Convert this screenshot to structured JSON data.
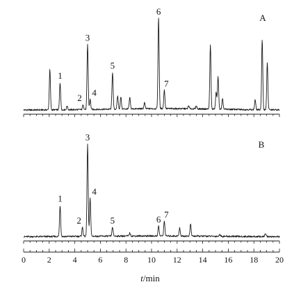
{
  "chart_data": {
    "type": "line",
    "x_axis": {
      "label_italic": "t",
      "label_rest": "/min",
      "range": [
        0,
        20
      ],
      "major_ticks": [
        0,
        2,
        4,
        6,
        8,
        10,
        12,
        14,
        16,
        18,
        20
      ],
      "minor_step": 0.5
    },
    "y_axis": {
      "shown": false,
      "unit": "relative response (A = 100)"
    },
    "grid": false,
    "legend": "none",
    "panels": [
      {
        "name": "A",
        "peaks": [
          {
            "t": 2.05,
            "h": 40
          },
          {
            "t": 2.85,
            "h": 27,
            "label": "1"
          },
          {
            "t": 3.4,
            "h": 4
          },
          {
            "t": 4.65,
            "h": 5,
            "label": "2"
          },
          {
            "t": 5.0,
            "h": 65,
            "label": "3"
          },
          {
            "t": 5.2,
            "h": 10,
            "label": "4"
          },
          {
            "t": 6.95,
            "h": 37,
            "label": "5"
          },
          {
            "t": 7.35,
            "h": 13
          },
          {
            "t": 7.6,
            "h": 12
          },
          {
            "t": 8.3,
            "h": 11
          },
          {
            "t": 9.45,
            "h": 6
          },
          {
            "t": 10.55,
            "h": 91,
            "label": "6"
          },
          {
            "t": 11.0,
            "h": 19,
            "label": "7"
          },
          {
            "t": 12.9,
            "h": 3
          },
          {
            "t": 13.5,
            "h": 3
          },
          {
            "t": 14.6,
            "h": 64
          },
          {
            "t": 15.05,
            "h": 17
          },
          {
            "t": 15.2,
            "h": 33
          },
          {
            "t": 15.55,
            "h": 10
          },
          {
            "t": 18.1,
            "h": 10
          },
          {
            "t": 18.65,
            "h": 70
          },
          {
            "t": 19.05,
            "h": 47
          }
        ]
      },
      {
        "name": "B",
        "peaks": [
          {
            "t": 2.85,
            "h": 31,
            "label": "1"
          },
          {
            "t": 4.6,
            "h": 9,
            "label": "2"
          },
          {
            "t": 5.0,
            "h": 92,
            "label": "3"
          },
          {
            "t": 5.2,
            "h": 38,
            "label": "4"
          },
          {
            "t": 6.95,
            "h": 9,
            "label": "5"
          },
          {
            "t": 8.3,
            "h": 3
          },
          {
            "t": 10.55,
            "h": 10,
            "label": "6"
          },
          {
            "t": 11.0,
            "h": 15,
            "label": "7"
          },
          {
            "t": 12.2,
            "h": 8
          },
          {
            "t": 13.05,
            "h": 12
          },
          {
            "t": 15.35,
            "h": 2
          },
          {
            "t": 18.9,
            "h": 3
          }
        ]
      }
    ]
  }
}
